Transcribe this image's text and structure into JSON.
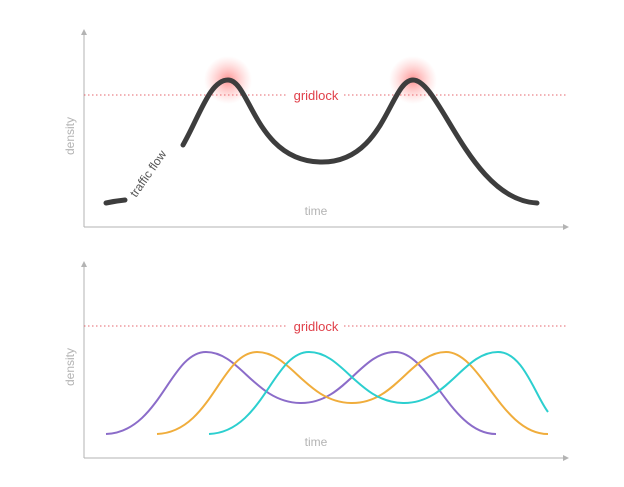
{
  "colors": {
    "axis": "#b3b3b3",
    "gridlock": "#e0404a",
    "traffic": "#3d3d3d",
    "glow": "#ff3b3b",
    "series": [
      "#8b6cc9",
      "#f0ad3c",
      "#2ccfcf"
    ]
  },
  "top": {
    "x_label": "time",
    "y_label": "density",
    "threshold_label": "gridlock",
    "curve_label": "traffic flow"
  },
  "bottom": {
    "x_label": "time",
    "y_label": "density",
    "threshold_label": "gridlock"
  }
}
